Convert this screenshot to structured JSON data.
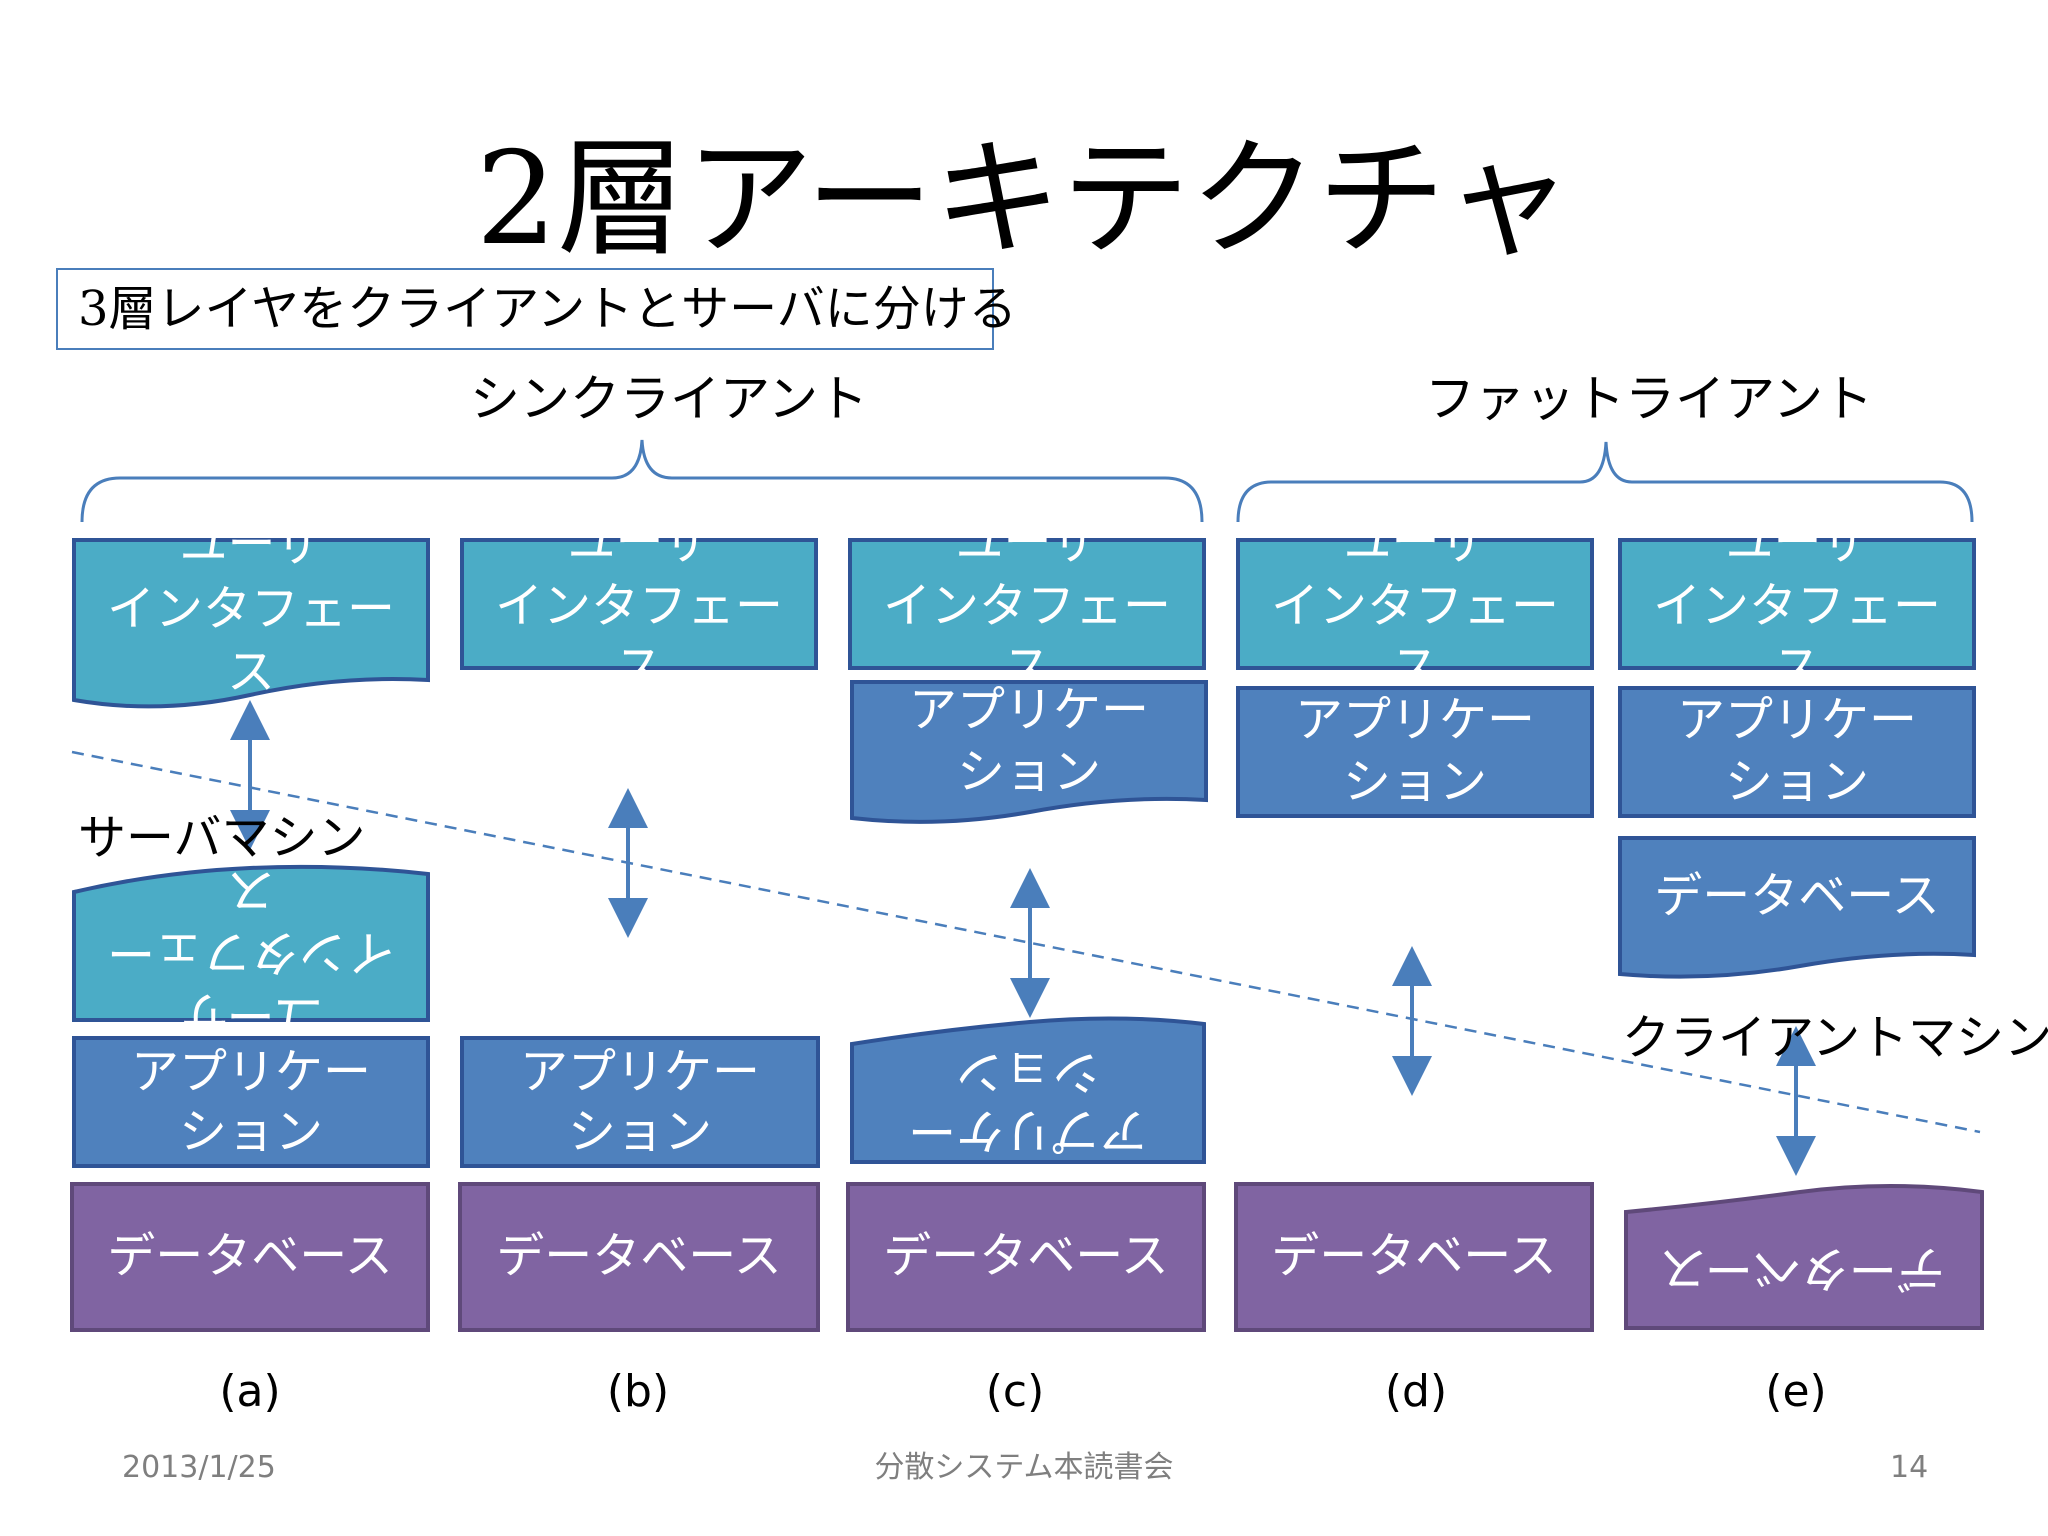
{
  "title": "2層アーキテクチャ",
  "subtitle": "3層レイヤをクライアントとサーバに分ける",
  "groups": {
    "thin_client": "シンクライアント",
    "fat_client": "ファットライアント"
  },
  "machines": {
    "server": "サーバマシン",
    "client": "クライアントマシン"
  },
  "layers": {
    "ui_line1": "ユーザ",
    "ui_line2": "インタフェー",
    "ui_line3": "ス",
    "app_line1": "アプリケー",
    "app_line2": "ション",
    "db": "データベース"
  },
  "columns": [
    "(a)",
    "(b)",
    "(c)",
    "(d)",
    "(e)"
  ],
  "footer": {
    "date": "2013/1/25",
    "center": "分散システム本読書会",
    "page": "14"
  },
  "colors": {
    "ui": "#4bacc6",
    "app": "#4f81bd",
    "db": "#8064a2",
    "border": "#2f5496",
    "line": "#4a7ebb"
  }
}
